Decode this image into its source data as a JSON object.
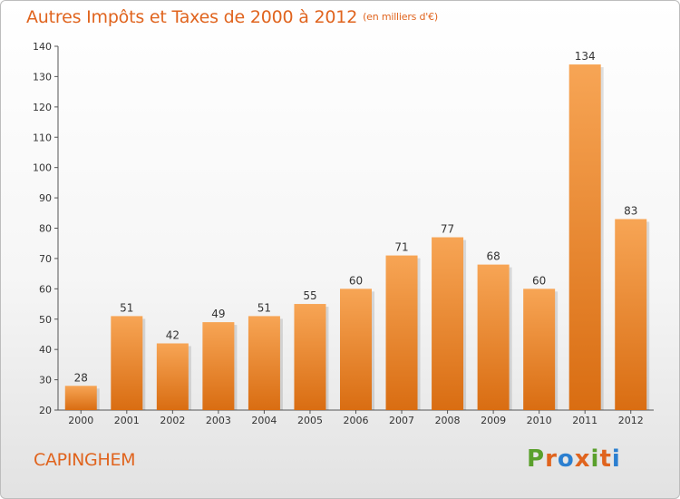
{
  "header": {
    "title": "Autres Impôts et Taxes de 2000 à 2012",
    "unit": "(en milliers d'€)"
  },
  "footer": {
    "commune": "CAPINGHEM",
    "logo_text": "Proxiti"
  },
  "colors": {
    "title": "#e0641e",
    "bar_light": "#f7a555",
    "bar_dark": "#d96d12",
    "logo": [
      "#5aa02c",
      "#e0641e",
      "#2b7fd0",
      "#e0641e",
      "#5aa02c",
      "#e0641e",
      "#2b7fd0"
    ]
  },
  "chart_data": {
    "type": "bar",
    "title": "Autres Impôts et Taxes de 2000 à 2012",
    "xlabel": "",
    "ylabel": "",
    "categories": [
      "2000",
      "2001",
      "2002",
      "2003",
      "2004",
      "2005",
      "2006",
      "2007",
      "2008",
      "2009",
      "2010",
      "2011",
      "2012"
    ],
    "values": [
      28,
      51,
      42,
      49,
      51,
      55,
      60,
      71,
      77,
      68,
      60,
      134,
      83
    ],
    "ylim": [
      20,
      140
    ],
    "yticks": [
      20,
      30,
      40,
      50,
      60,
      70,
      80,
      90,
      100,
      110,
      120,
      130,
      140
    ],
    "grid": false,
    "legend": "none"
  }
}
